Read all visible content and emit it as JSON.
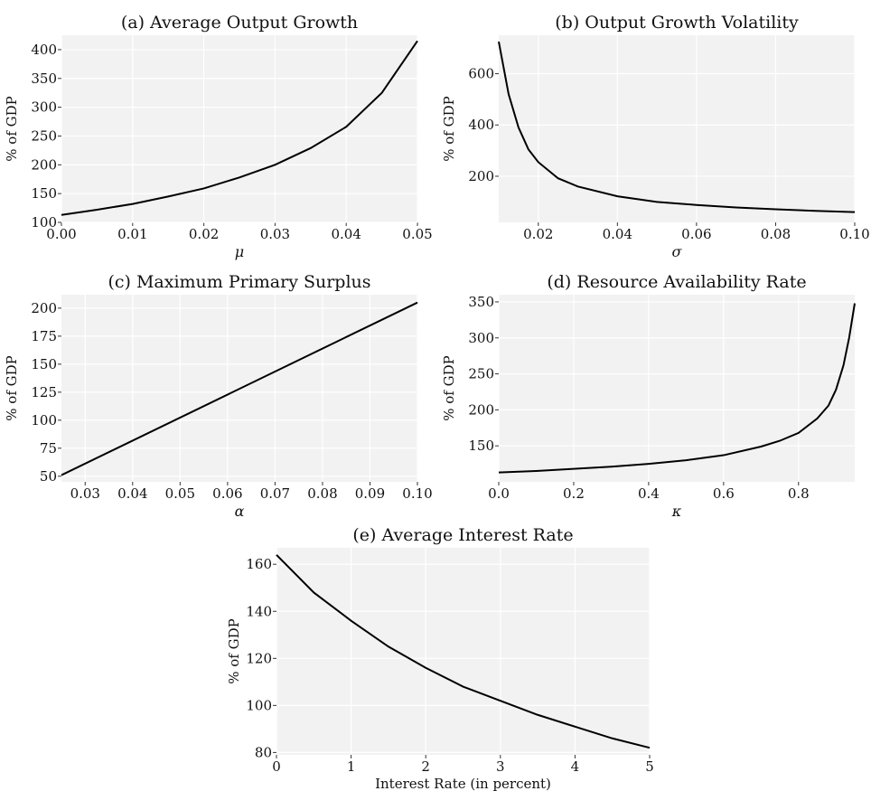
{
  "chart_data": [
    {
      "type": "line",
      "title": "(a) Average Output Growth",
      "xlabel": "μ",
      "ylabel": "% of GDP",
      "xlim": [
        0.0,
        0.05
      ],
      "ylim": [
        100,
        425
      ],
      "xticks": [
        "0.00",
        "0.01",
        "0.02",
        "0.03",
        "0.04",
        "0.05"
      ],
      "yticks": [
        "100",
        "150",
        "200",
        "250",
        "300",
        "350",
        "400"
      ],
      "grid": true,
      "series": [
        {
          "x": [
            0.0,
            0.005,
            0.01,
            0.015,
            0.02,
            0.025,
            0.03,
            0.035,
            0.04,
            0.045,
            0.05
          ],
          "y": [
            113,
            122,
            132,
            145,
            159,
            178,
            200,
            229,
            266,
            325,
            415
          ]
        }
      ]
    },
    {
      "type": "line",
      "title": "(b) Output Growth Volatility",
      "xlabel": "σ",
      "ylabel": "% of GDP",
      "xlim": [
        0.01,
        0.1
      ],
      "ylim": [
        20,
        750
      ],
      "xticks": [
        "0.02",
        "0.04",
        "0.06",
        "0.08",
        "0.10"
      ],
      "yticks": [
        "200",
        "400",
        "600"
      ],
      "grid": true,
      "series": [
        {
          "x": [
            0.01,
            0.0125,
            0.015,
            0.0175,
            0.02,
            0.025,
            0.03,
            0.04,
            0.05,
            0.06,
            0.07,
            0.08,
            0.09,
            0.1
          ],
          "y": [
            725,
            520,
            390,
            305,
            255,
            192,
            160,
            122,
            100,
            88,
            78,
            71,
            65,
            60
          ]
        }
      ]
    },
    {
      "type": "line",
      "title": "(c) Maximum Primary Surplus",
      "xlabel": "α",
      "ylabel": "% of GDP",
      "xlim": [
        0.025,
        0.1
      ],
      "ylim": [
        45,
        212
      ],
      "xticks": [
        "0.03",
        "0.04",
        "0.05",
        "0.06",
        "0.07",
        "0.08",
        "0.09",
        "0.10"
      ],
      "yticks": [
        "50",
        "75",
        "100",
        "125",
        "150",
        "175",
        "200"
      ],
      "grid": true,
      "series": [
        {
          "x": [
            0.025,
            0.1
          ],
          "y": [
            51,
            205
          ]
        }
      ]
    },
    {
      "type": "line",
      "title": "(d) Resource Availability Rate",
      "xlabel": "κ",
      "ylabel": "% of GDP",
      "xlim": [
        0.0,
        0.95
      ],
      "ylim": [
        100,
        360
      ],
      "xticks": [
        "0.0",
        "0.2",
        "0.4",
        "0.6",
        "0.8"
      ],
      "yticks": [
        "150",
        "200",
        "250",
        "300",
        "350"
      ],
      "grid": true,
      "series": [
        {
          "x": [
            0.0,
            0.1,
            0.2,
            0.3,
            0.4,
            0.5,
            0.6,
            0.7,
            0.75,
            0.8,
            0.85,
            0.88,
            0.9,
            0.92,
            0.935,
            0.95
          ],
          "y": [
            113,
            115,
            118,
            121,
            125,
            130,
            137,
            149,
            157,
            168,
            188,
            206,
            228,
            262,
            300,
            348
          ]
        }
      ]
    },
    {
      "type": "line",
      "title": "(e) Average Interest Rate",
      "xlabel": "Interest Rate (in percent)",
      "ylabel": "% of GDP",
      "xlim": [
        0,
        5
      ],
      "ylim": [
        79,
        167
      ],
      "xticks": [
        "0",
        "1",
        "2",
        "3",
        "4",
        "5"
      ],
      "yticks": [
        "80",
        "100",
        "120",
        "140",
        "160"
      ],
      "grid": true,
      "series": [
        {
          "x": [
            0,
            0.5,
            1,
            1.5,
            2,
            2.5,
            3,
            3.5,
            4,
            4.5,
            5
          ],
          "y": [
            164,
            148,
            136,
            125,
            116,
            108,
            102,
            96,
            91,
            86,
            82
          ]
        }
      ]
    }
  ]
}
